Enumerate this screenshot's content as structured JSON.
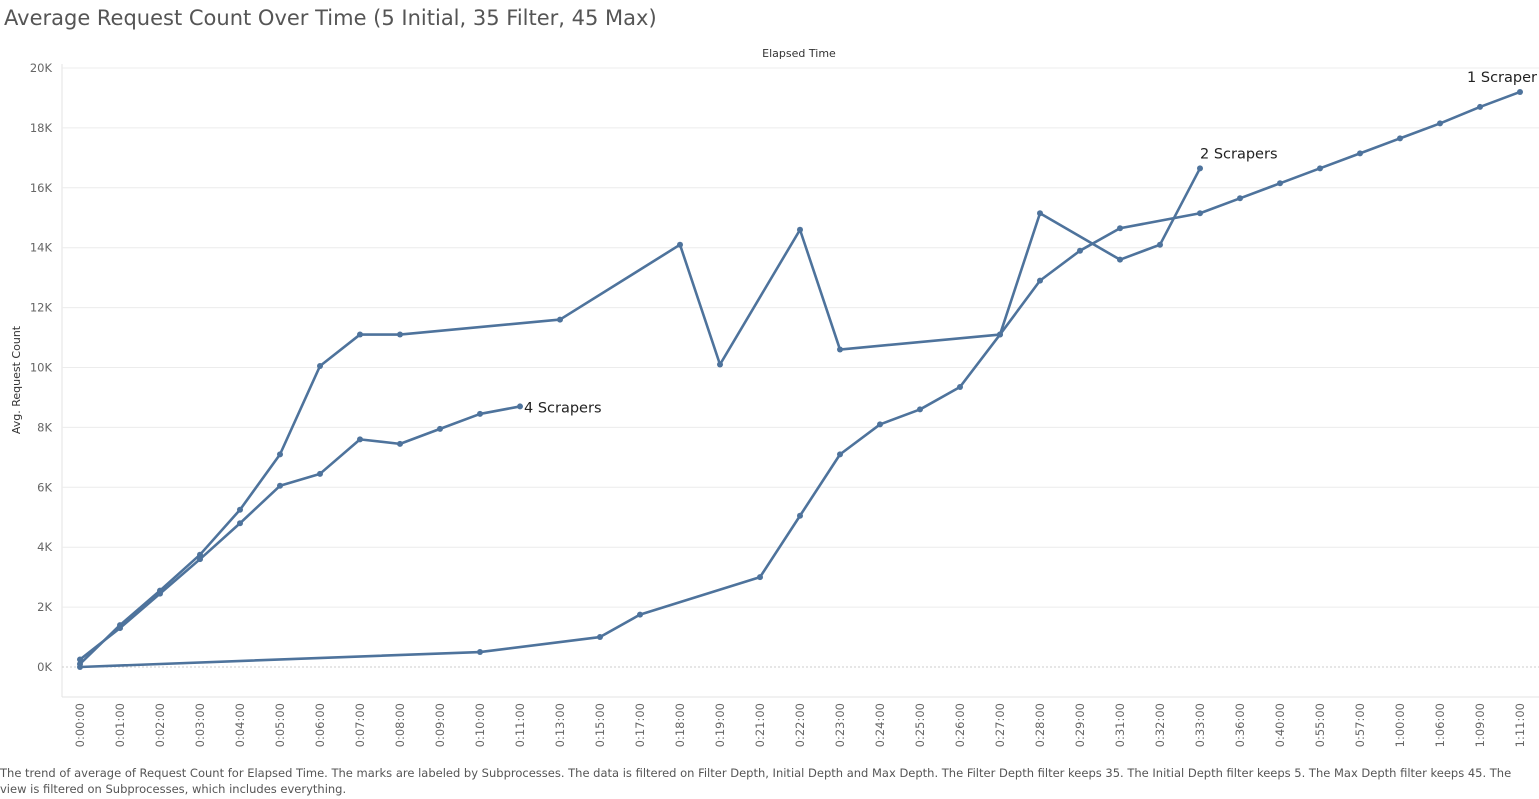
{
  "title": "Average Request Count Over Time (5 Initial, 35 Filter, 45 Max)",
  "caption": "The trend of average of Request Count for Elapsed Time.  The marks are labeled by Subprocesses. The data is filtered on Filter Depth, Initial Depth and Max Depth. The Filter Depth filter keeps 35. The Initial Depth filter keeps 5. The Max Depth filter keeps 45. The view is filtered on Subprocesses, which includes everything.",
  "colors": {
    "line": "#4e739c",
    "grid": "#ececec",
    "zero": "#cccccc"
  },
  "chart_data": {
    "type": "line",
    "xlabel": "Elapsed Time",
    "ylabel": "Avg. Request Count",
    "categories": [
      "0:00:00",
      "0:01:00",
      "0:02:00",
      "0:03:00",
      "0:04:00",
      "0:05:00",
      "0:06:00",
      "0:07:00",
      "0:08:00",
      "0:09:00",
      "0:10:00",
      "0:11:00",
      "0:13:00",
      "0:15:00",
      "0:17:00",
      "0:18:00",
      "0:19:00",
      "0:21:00",
      "0:22:00",
      "0:23:00",
      "0:24:00",
      "0:25:00",
      "0:26:00",
      "0:27:00",
      "0:28:00",
      "0:29:00",
      "0:31:00",
      "0:32:00",
      "0:33:00",
      "0:36:00",
      "0:40:00",
      "0:55:00",
      "0:57:00",
      "1:00:00",
      "1:06:00",
      "1:09:00",
      "1:11:00"
    ],
    "ylim": [
      0,
      20000
    ],
    "yticks": [
      {
        "value": 0,
        "label": "0K"
      },
      {
        "value": 2000,
        "label": "2K"
      },
      {
        "value": 4000,
        "label": "4K"
      },
      {
        "value": 6000,
        "label": "6K"
      },
      {
        "value": 8000,
        "label": "8K"
      },
      {
        "value": 10000,
        "label": "10K"
      },
      {
        "value": 12000,
        "label": "12K"
      },
      {
        "value": 14000,
        "label": "14K"
      },
      {
        "value": 16000,
        "label": "16K"
      },
      {
        "value": 18000,
        "label": "18K"
      },
      {
        "value": 20000,
        "label": "20K"
      }
    ],
    "grid": true,
    "series": [
      {
        "name": "1 Scraper",
        "points": [
          [
            "0:00:00",
            0
          ],
          [
            "0:10:00",
            500
          ],
          [
            "0:15:00",
            1000
          ],
          [
            "0:17:00",
            1750
          ],
          [
            "0:21:00",
            3000
          ],
          [
            "0:22:00",
            5050
          ],
          [
            "0:23:00",
            7100
          ],
          [
            "0:24:00",
            8100
          ],
          [
            "0:25:00",
            8600
          ],
          [
            "0:26:00",
            9350
          ],
          [
            "0:27:00",
            11100
          ],
          [
            "0:28:00",
            12900
          ],
          [
            "0:29:00",
            13900
          ],
          [
            "0:31:00",
            14650
          ],
          [
            "0:33:00",
            15150
          ],
          [
            "0:36:00",
            15650
          ],
          [
            "0:40:00",
            16150
          ],
          [
            "0:55:00",
            16650
          ],
          [
            "0:57:00",
            17150
          ],
          [
            "1:00:00",
            17650
          ],
          [
            "1:06:00",
            18150
          ],
          [
            "1:09:00",
            18700
          ],
          [
            "1:11:00",
            19200
          ]
        ]
      },
      {
        "name": "2 Scrapers",
        "points": [
          [
            "0:00:00",
            100
          ],
          [
            "0:01:00",
            1400
          ],
          [
            "0:02:00",
            2550
          ],
          [
            "0:03:00",
            3750
          ],
          [
            "0:04:00",
            5250
          ],
          [
            "0:05:00",
            7100
          ],
          [
            "0:06:00",
            10050
          ],
          [
            "0:07:00",
            11100
          ],
          [
            "0:08:00",
            11100
          ],
          [
            "0:13:00",
            11600
          ],
          [
            "0:18:00",
            14100
          ],
          [
            "0:19:00",
            10100
          ],
          [
            "0:22:00",
            14600
          ],
          [
            "0:23:00",
            10600
          ],
          [
            "0:27:00",
            11100
          ],
          [
            "0:28:00",
            15150
          ],
          [
            "0:31:00",
            13600
          ],
          [
            "0:32:00",
            14100
          ],
          [
            "0:33:00",
            16650
          ]
        ]
      },
      {
        "name": "4 Scrapers",
        "points": [
          [
            "0:00:00",
            250
          ],
          [
            "0:01:00",
            1300
          ],
          [
            "0:02:00",
            2450
          ],
          [
            "0:03:00",
            3600
          ],
          [
            "0:04:00",
            4800
          ],
          [
            "0:05:00",
            6050
          ],
          [
            "0:06:00",
            6450
          ],
          [
            "0:07:00",
            7600
          ],
          [
            "0:08:00",
            7450
          ],
          [
            "0:09:00",
            7950
          ],
          [
            "0:10:00",
            8450
          ],
          [
            "0:11:00",
            8700
          ]
        ]
      }
    ]
  }
}
